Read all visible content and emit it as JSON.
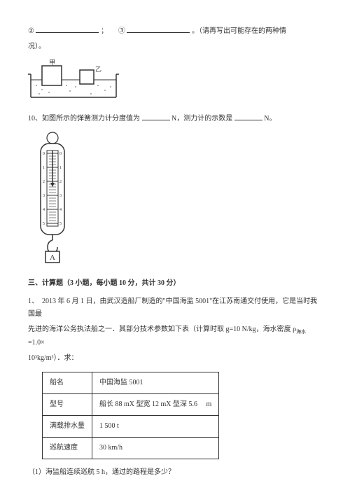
{
  "q_top": {
    "circled2": "②",
    "semicolon": "；",
    "circled3": "③",
    "tail": "。（请再写出可能存在的两种情",
    "tail2": "况）。"
  },
  "fig1": {
    "label_jia": "甲",
    "label_yi": "乙",
    "container_stroke": "#333333",
    "block_fill": "#ffffff",
    "water_dot": "#333333"
  },
  "q10": {
    "prefix": "10、如图所示的弹簧测力计分度值为",
    "unit1": "N，测力计的示数是",
    "unit2": "N。"
  },
  "fig2": {
    "letter": "A",
    "scale_marks": [
      "0",
      "1",
      "2",
      "3",
      "4",
      "5"
    ],
    "stroke": "#333333",
    "fill": "#ffffff"
  },
  "section3": {
    "title": "三、计算题（3 小题，每小题 10 分，共计 30 分）",
    "q1_a": "1、　2013 年 6 月 1 日，由武汉造船厂制造的\"中国海监 5001\"在江苏南通交付使用，它是当时我国最",
    "q1_b": "先进的海洋公务执法船之一．其部分技术参数如下表（计算时取 g=10 N/kg，海水密度 ρ",
    "q1_b_sub": "海水",
    "q1_b2": "=1.0×",
    "q1_c": "10³kg/m³）．求：",
    "sub_q1": "（1）海监船连续巡航 5 h，通过的路程是多少？"
  },
  "table": {
    "rows": [
      {
        "k": "船名",
        "v": "中国海监 5001"
      },
      {
        "k": "型号",
        "v": "船长 88 mX 型宽 12 mX 型深 5.6 　m"
      },
      {
        "k": "满载排水量",
        "v": "1 500 t"
      },
      {
        "k": "巡航速度",
        "v": "30 km/h"
      }
    ]
  }
}
